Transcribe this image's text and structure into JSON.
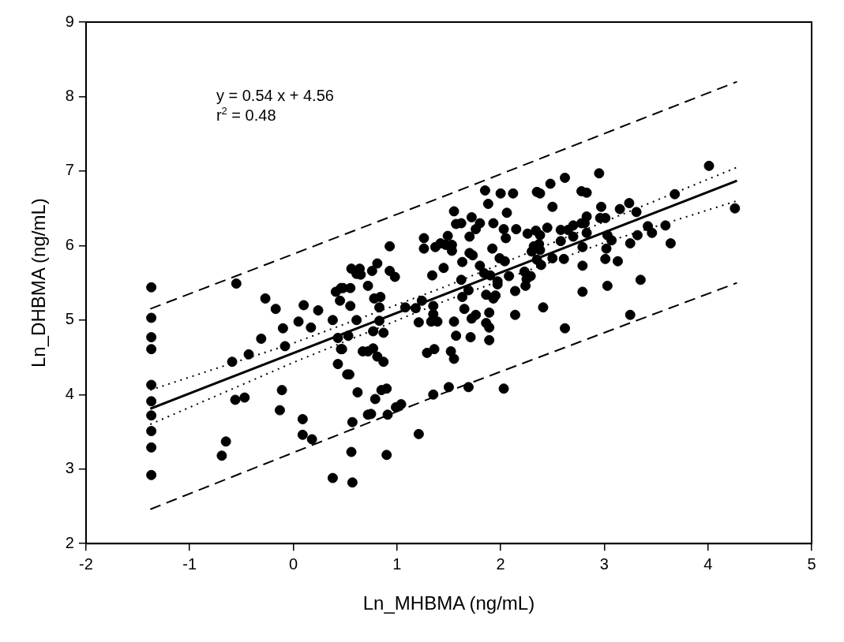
{
  "chart_data": {
    "type": "scatter",
    "xlabel": "Ln_MHBMA (ng/mL)",
    "ylabel": "Ln_DHBMA (ng/mL)",
    "xlim": [
      -2,
      5
    ],
    "xticks": [
      -2,
      -1,
      0,
      1,
      2,
      3,
      4,
      5
    ],
    "ylim": [
      2,
      9
    ],
    "yticks": [
      2,
      3,
      4,
      5,
      6,
      7,
      8,
      9
    ],
    "grid": false,
    "legend": false,
    "annotations": [
      "y = 0.54 x + 4.56",
      "r$^{2}$ = 0.48"
    ],
    "series": [
      {
        "color": "#000000",
        "marker": "circle",
        "x": [
          -1.37,
          -1.37,
          -1.37,
          -1.37,
          -1.37,
          -1.37,
          -1.37,
          -1.37,
          -1.37,
          -1.37,
          -0.55,
          -0.27,
          -0.17,
          0.1,
          0.24,
          0.05,
          -0.1,
          0.17,
          0.38,
          -0.31,
          -0.08,
          -0.43,
          -0.59,
          -0.56,
          -0.47,
          -0.11,
          -0.13,
          0.09,
          0.09,
          0.18,
          -0.65,
          -0.69,
          0.38,
          0.43,
          0.46,
          0.43,
          0.41,
          0.46,
          0.45,
          0.52,
          0.93,
          1.26,
          1.26,
          1.37,
          1.42,
          1.47,
          1.53,
          1.53,
          1.49,
          0.56,
          0.64,
          0.61,
          0.65,
          0.76,
          0.81,
          0.93,
          0.98,
          0.48,
          0.55,
          0.72,
          0.78,
          0.84,
          0.55,
          0.83,
          0.61,
          0.83,
          0.53,
          0.77,
          0.87,
          0.47,
          0.67,
          0.72,
          0.77,
          0.81,
          0.87,
          0.54,
          0.62,
          0.85,
          0.9,
          0.79,
          0.99,
          1.04,
          0.72,
          0.75,
          0.91,
          0.57,
          1.21,
          0.56,
          0.9,
          0.57,
          1.08,
          1.18,
          1.24,
          1.21,
          1.35,
          1.35,
          1.33,
          1.39,
          1.34,
          1.45,
          1.63,
          1.62,
          1.7,
          1.73,
          1.8,
          1.92,
          1.69,
          1.63,
          1.65,
          1.72,
          1.76,
          1.55,
          1.57,
          1.71,
          1.52,
          1.55,
          1.29,
          1.36,
          1.5,
          1.35,
          1.69,
          2.03,
          1.84,
          1.9,
          1.97,
          1.97,
          1.99,
          2.04,
          2.05,
          1.86,
          1.93,
          1.95,
          1.89,
          1.86,
          1.89,
          1.89,
          2.14,
          2.14,
          2.08,
          2.48,
          2.35,
          2.38,
          2.78,
          2.83,
          2.5,
          2.97,
          3.24,
          3.15,
          3.31,
          3.68,
          2.83,
          2.96,
          3.01,
          2.45,
          2.26,
          2.34,
          2.38,
          2.58,
          2.65,
          2.7,
          2.78,
          2.81,
          2.7,
          2.83,
          2.58,
          2.32,
          2.37,
          2.3,
          2.38,
          3.03,
          3.07,
          3.02,
          3.42,
          3.46,
          3.32,
          3.59,
          3.25,
          3.64,
          2.79,
          2.35,
          2.39,
          2.5,
          2.61,
          2.23,
          2.25,
          2.29,
          2.24,
          2.79,
          3.01,
          3.13,
          3.35,
          2.79,
          3.03,
          2.41,
          2.62,
          3.25,
          4.01,
          4.26,
          2.95,
          2.62,
          1.55,
          1.62,
          1.72,
          1.76,
          1.8,
          1.85,
          1.88,
          1.93,
          2.0,
          2.06,
          2.12,
          2.15,
          1.7,
          2.03,
          1.57
        ],
        "values": [
          5.44,
          5.03,
          4.77,
          4.61,
          4.13,
          3.91,
          3.72,
          3.51,
          3.29,
          2.92,
          5.49,
          5.29,
          5.15,
          5.2,
          5.13,
          4.98,
          4.89,
          4.9,
          5.0,
          4.75,
          4.65,
          4.54,
          4.44,
          3.93,
          3.96,
          4.06,
          3.79,
          3.67,
          3.46,
          3.4,
          3.37,
          3.18,
          2.88,
          4.41,
          4.61,
          4.76,
          5.38,
          5.43,
          5.26,
          4.27,
          5.99,
          5.96,
          6.1,
          5.98,
          6.03,
          6.01,
          6.01,
          5.93,
          6.13,
          5.69,
          5.69,
          5.62,
          5.61,
          5.66,
          5.76,
          5.66,
          5.58,
          5.43,
          5.43,
          5.46,
          5.29,
          5.31,
          5.19,
          5.17,
          5.0,
          4.99,
          4.79,
          4.85,
          4.83,
          4.61,
          4.58,
          4.58,
          4.62,
          4.51,
          4.44,
          4.27,
          4.03,
          4.06,
          4.08,
          3.94,
          3.83,
          3.87,
          3.73,
          3.74,
          3.73,
          3.63,
          3.47,
          3.23,
          3.19,
          2.82,
          5.17,
          5.16,
          5.26,
          4.97,
          5.19,
          5.08,
          4.98,
          4.98,
          5.6,
          5.7,
          5.78,
          5.54,
          5.9,
          5.87,
          5.73,
          5.96,
          5.4,
          5.31,
          5.15,
          5.02,
          5.07,
          4.98,
          4.79,
          4.77,
          4.58,
          4.48,
          4.56,
          4.61,
          4.1,
          4.0,
          4.1,
          4.08,
          5.63,
          5.6,
          5.52,
          5.48,
          5.83,
          5.79,
          6.1,
          5.34,
          5.29,
          5.33,
          5.1,
          4.96,
          4.9,
          4.73,
          5.07,
          5.39,
          5.59,
          6.83,
          6.72,
          6.7,
          6.73,
          6.71,
          6.52,
          6.52,
          6.57,
          6.49,
          6.45,
          6.69,
          6.39,
          6.37,
          6.37,
          6.24,
          6.16,
          6.2,
          6.14,
          6.21,
          6.21,
          6.27,
          6.3,
          6.3,
          6.12,
          6.17,
          6.06,
          5.99,
          6.02,
          5.92,
          5.94,
          6.14,
          6.07,
          5.96,
          6.26,
          6.17,
          6.14,
          6.27,
          6.03,
          6.03,
          5.98,
          5.81,
          5.74,
          5.83,
          5.82,
          5.65,
          5.55,
          5.59,
          5.46,
          5.73,
          5.82,
          5.79,
          5.54,
          5.38,
          5.46,
          5.17,
          4.89,
          5.07,
          7.07,
          6.5,
          6.97,
          6.91,
          6.46,
          6.3,
          6.38,
          6.22,
          6.3,
          6.74,
          6.56,
          6.3,
          6.7,
          6.44,
          6.7,
          6.22,
          6.12,
          6.22,
          6.29
        ]
      },
      {
        "type": "line",
        "color": "#000000",
        "marker": "none",
        "line_style": "solid",
        "x": [
          -1.38,
          4.28
        ],
        "values": [
          3.81,
          6.87
        ]
      },
      {
        "type": "line",
        "color": "#000000",
        "marker": "none",
        "line_style": "dotted",
        "x": [
          -1.38,
          0,
          1.45,
          3,
          4.28
        ],
        "values": [
          4.06,
          4.69,
          5.44,
          6.32,
          7.05
        ]
      },
      {
        "type": "line",
        "color": "#000000",
        "marker": "none",
        "line_style": "dotted",
        "x": [
          -1.38,
          0,
          1.45,
          3,
          4.28
        ],
        "values": [
          3.6,
          4.43,
          5.25,
          6.04,
          6.6
        ]
      },
      {
        "type": "line",
        "color": "#000000",
        "marker": "none",
        "line_style": "dashed",
        "x": [
          -1.38,
          1.45,
          4.28
        ],
        "values": [
          5.15,
          6.66,
          8.2
        ]
      },
      {
        "type": "line",
        "color": "#000000",
        "marker": "none",
        "line_style": "dashed",
        "x": [
          -1.38,
          1.45,
          4.28
        ],
        "values": [
          2.46,
          4.02,
          5.5
        ]
      }
    ]
  }
}
